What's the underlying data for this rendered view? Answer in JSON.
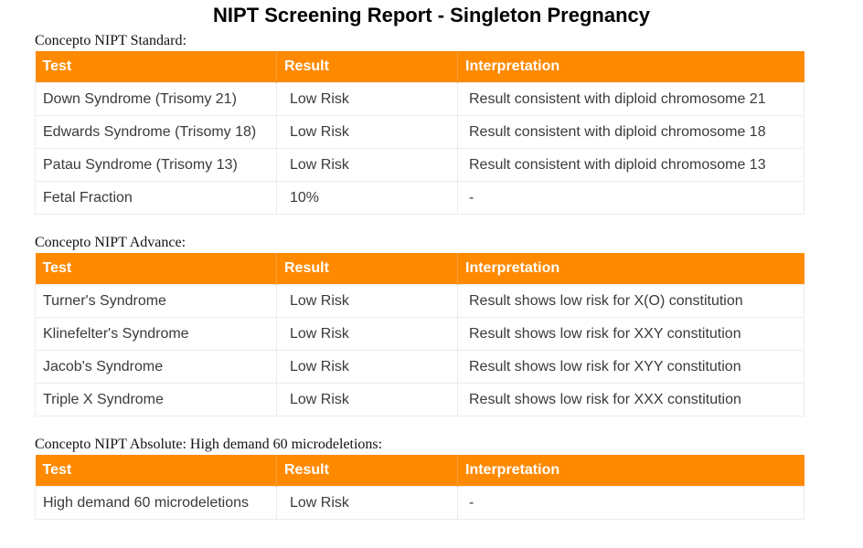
{
  "title": "NIPT Screening Report - Singleton Pregnancy",
  "headers": {
    "test": "Test",
    "result": "Result",
    "interpretation": "Interpretation"
  },
  "sections": [
    {
      "heading": "Concepto NIPT Standard:",
      "rows": [
        {
          "test": "Down Syndrome (Trisomy 21)",
          "result": "Low Risk",
          "interpretation": "Result consistent with diploid chromosome 21"
        },
        {
          "test": "Edwards Syndrome (Trisomy 18)",
          "result": "Low Risk",
          "interpretation": "Result consistent with diploid chromosome 18"
        },
        {
          "test": "Patau Syndrome (Trisomy 13)",
          "result": "Low Risk",
          "interpretation": "Result consistent with diploid chromosome 13"
        },
        {
          "test": "Fetal Fraction",
          "result": "10%",
          "interpretation": "-"
        }
      ]
    },
    {
      "heading": "Concepto NIPT Advance:",
      "rows": [
        {
          "test": "Turner's Syndrome",
          "result": "Low Risk",
          "interpretation": "Result shows low risk for X(O) constitution"
        },
        {
          "test": "Klinefelter's Syndrome",
          "result": "Low Risk",
          "interpretation": "Result shows low risk for XXY constitution"
        },
        {
          "test": "Jacob's Syndrome",
          "result": "Low Risk",
          "interpretation": "Result shows low risk for XYY constitution"
        },
        {
          "test": "Triple X Syndrome",
          "result": "Low Risk",
          "interpretation": "Result shows low risk for XXX constitution"
        }
      ]
    },
    {
      "heading": "Concepto NIPT Absolute: High demand 60 microdeletions:",
      "rows": [
        {
          "test": "High demand 60 microdeletions",
          "result": "Low Risk",
          "interpretation": "-"
        }
      ]
    }
  ]
}
